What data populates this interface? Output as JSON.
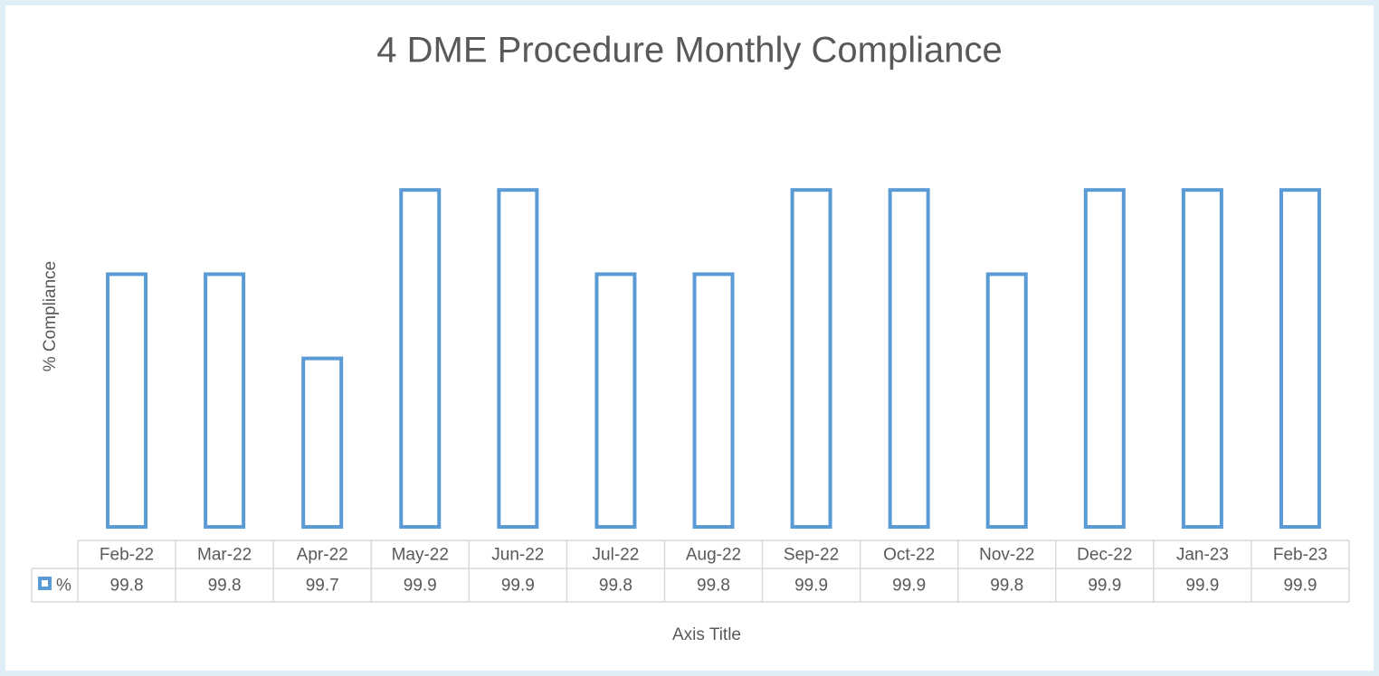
{
  "chart_data": {
    "type": "bar",
    "title": "4 DME Procedure Monthly Compliance",
    "y_label": "% Compliance",
    "x_label": "Axis Title",
    "categories": [
      "Feb-22",
      "Mar-22",
      "Apr-22",
      "May-22",
      "Jun-22",
      "Jul-22",
      "Aug-22",
      "Sep-22",
      "Oct-22",
      "Nov-22",
      "Dec-22",
      "Jan-23",
      "Feb-23"
    ],
    "series": [
      {
        "name": "%",
        "color": "#5b9bd5",
        "values": [
          99.8,
          99.8,
          99.7,
          99.9,
          99.9,
          99.8,
          99.8,
          99.9,
          99.9,
          99.8,
          99.9,
          99.9,
          99.9
        ]
      }
    ],
    "ylim": [
      99.5,
      100
    ],
    "data_table": true
  }
}
